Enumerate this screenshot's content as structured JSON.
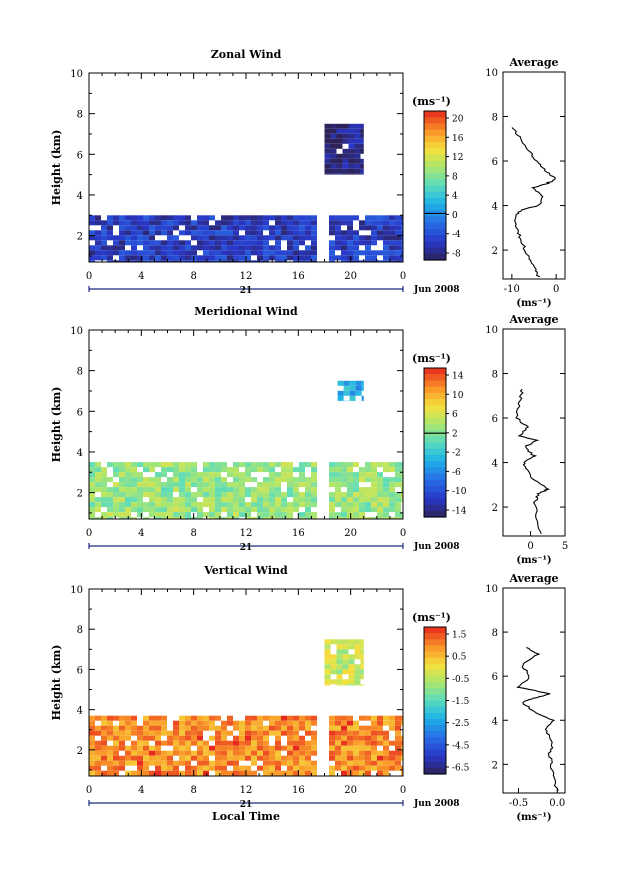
{
  "chart_data": [
    {
      "type": "heatmap",
      "title": "Zonal Wind",
      "ylabel": "Height (km)",
      "xlabel": "",
      "x_ticks": [
        "0",
        "4",
        "8",
        "12",
        "16",
        "20",
        "0"
      ],
      "y_ticks": [
        "2",
        "4",
        "6",
        "8",
        "10"
      ],
      "xlim": [
        0,
        24
      ],
      "ylim": [
        0.7,
        10
      ],
      "date_label": "21",
      "date_suffix": "Jun 2008",
      "colorbar": {
        "unit_label": "(ms⁻¹)",
        "ticks": [
          "-8",
          "-4",
          "0",
          "4",
          "8",
          "12",
          "16",
          "20"
        ],
        "range": [
          -10,
          22
        ],
        "line_at": 0
      },
      "fields": {
        "low_layer": {
          "time": [
            0,
            24
          ],
          "height": [
            0.7,
            3.0
          ],
          "value": -6
        },
        "upper_patch": {
          "time": [
            18,
            21
          ],
          "height": [
            5.0,
            7.5
          ],
          "value": -9
        }
      },
      "average_profile": {
        "title": "Average",
        "xlabel": "(ms⁻¹)",
        "x_ticks": [
          "-10",
          "0"
        ],
        "y_ticks": [
          "2",
          "4",
          "6",
          "8",
          "10"
        ],
        "xlim": [
          -12,
          2
        ],
        "points": [
          [
            -4,
            0.8
          ],
          [
            -5,
            1.2
          ],
          [
            -6,
            1.6
          ],
          [
            -7,
            2.0
          ],
          [
            -8,
            2.5
          ],
          [
            -9,
            3.0
          ],
          [
            -9,
            3.5
          ],
          [
            -8,
            3.8
          ],
          [
            -4,
            4.0
          ],
          [
            -3,
            4.4
          ],
          [
            -5,
            4.8
          ],
          [
            -2,
            5.0
          ],
          [
            0,
            5.2
          ],
          [
            -2,
            5.5
          ],
          [
            -4,
            5.9
          ],
          [
            -6,
            6.4
          ],
          [
            -8,
            7.0
          ],
          [
            -10,
            7.5
          ]
        ]
      }
    },
    {
      "type": "heatmap",
      "title": "Meridional Wind",
      "ylabel": "Height (km)",
      "xlabel": "",
      "x_ticks": [
        "0",
        "4",
        "8",
        "12",
        "16",
        "20",
        "0"
      ],
      "y_ticks": [
        "2",
        "4",
        "6",
        "8",
        "10"
      ],
      "xlim": [
        0,
        24
      ],
      "ylim": [
        0.7,
        10
      ],
      "date_label": "21",
      "date_suffix": "Jun 2008",
      "colorbar": {
        "unit_label": "(ms⁻¹)",
        "ticks": [
          "-14",
          "-10",
          "-6",
          "-2",
          "2",
          "6",
          "10",
          "14"
        ],
        "range": [
          -16,
          16
        ],
        "line_at": 2
      },
      "fields": {
        "low_layer": {
          "time": [
            0,
            24
          ],
          "height": [
            0.7,
            3.5
          ],
          "value": 3
        },
        "upper_patch": {
          "time": [
            19,
            21
          ],
          "height": [
            6.5,
            7.5
          ],
          "value": -4
        }
      },
      "average_profile": {
        "title": "Average",
        "xlabel": "(ms⁻¹)",
        "x_ticks": [
          "0",
          "5"
        ],
        "y_ticks": [
          "2",
          "4",
          "6",
          "8",
          "10"
        ],
        "xlim": [
          -4,
          5
        ],
        "points": [
          [
            1.5,
            0.8
          ],
          [
            1.0,
            1.5
          ],
          [
            0.6,
            2.2
          ],
          [
            1.2,
            2.6
          ],
          [
            2.5,
            2.8
          ],
          [
            0.5,
            3.2
          ],
          [
            -0.5,
            3.7
          ],
          [
            -1.0,
            4.0
          ],
          [
            0.5,
            4.3
          ],
          [
            -0.8,
            4.7
          ],
          [
            0.8,
            5.0
          ],
          [
            -1.5,
            5.2
          ],
          [
            -0.5,
            5.6
          ],
          [
            -2.0,
            6.0
          ],
          [
            -1.5,
            6.8
          ],
          [
            -1.2,
            7.3
          ]
        ]
      }
    },
    {
      "type": "heatmap",
      "title": "Vertical Wind",
      "ylabel": "Height (km)",
      "xlabel": "Local Time",
      "x_ticks": [
        "0",
        "4",
        "8",
        "12",
        "16",
        "20",
        "0"
      ],
      "y_ticks": [
        "2",
        "4",
        "6",
        "8",
        "10"
      ],
      "xlim": [
        0,
        24
      ],
      "ylim": [
        0.7,
        10
      ],
      "date_label": "21",
      "date_suffix": "Jun 2008",
      "colorbar": {
        "unit_label": "(ms⁻¹)",
        "ticks": [
          "-6.5",
          "-4.5",
          "-2.5",
          "-1.5",
          "-0.5",
          "0.5",
          "1.5"
        ],
        "range": [
          -7,
          2
        ]
      },
      "fields": {
        "low_layer": {
          "time": [
            0,
            24
          ],
          "height": [
            0.7,
            3.7
          ],
          "value": 0.8
        },
        "upper_patch": {
          "time": [
            18,
            21
          ],
          "height": [
            5.2,
            7.5
          ],
          "value": -1.0
        }
      },
      "average_profile": {
        "title": "Average",
        "xlabel": "(ms⁻¹)",
        "x_ticks": [
          "-0.5",
          "0.0"
        ],
        "y_ticks": [
          "2",
          "4",
          "6",
          "8",
          "10"
        ],
        "xlim": [
          -0.7,
          0.1
        ],
        "points": [
          [
            0.0,
            0.8
          ],
          [
            -0.05,
            1.5
          ],
          [
            -0.08,
            2.0
          ],
          [
            -0.1,
            2.5
          ],
          [
            -0.05,
            3.0
          ],
          [
            -0.15,
            3.5
          ],
          [
            -0.05,
            4.0
          ],
          [
            -0.3,
            4.4
          ],
          [
            -0.45,
            4.8
          ],
          [
            -0.3,
            5.0
          ],
          [
            -0.1,
            5.2
          ],
          [
            -0.5,
            5.5
          ],
          [
            -0.35,
            6.0
          ],
          [
            -0.45,
            6.5
          ],
          [
            -0.25,
            7.0
          ],
          [
            -0.4,
            7.3
          ]
        ]
      }
    }
  ]
}
